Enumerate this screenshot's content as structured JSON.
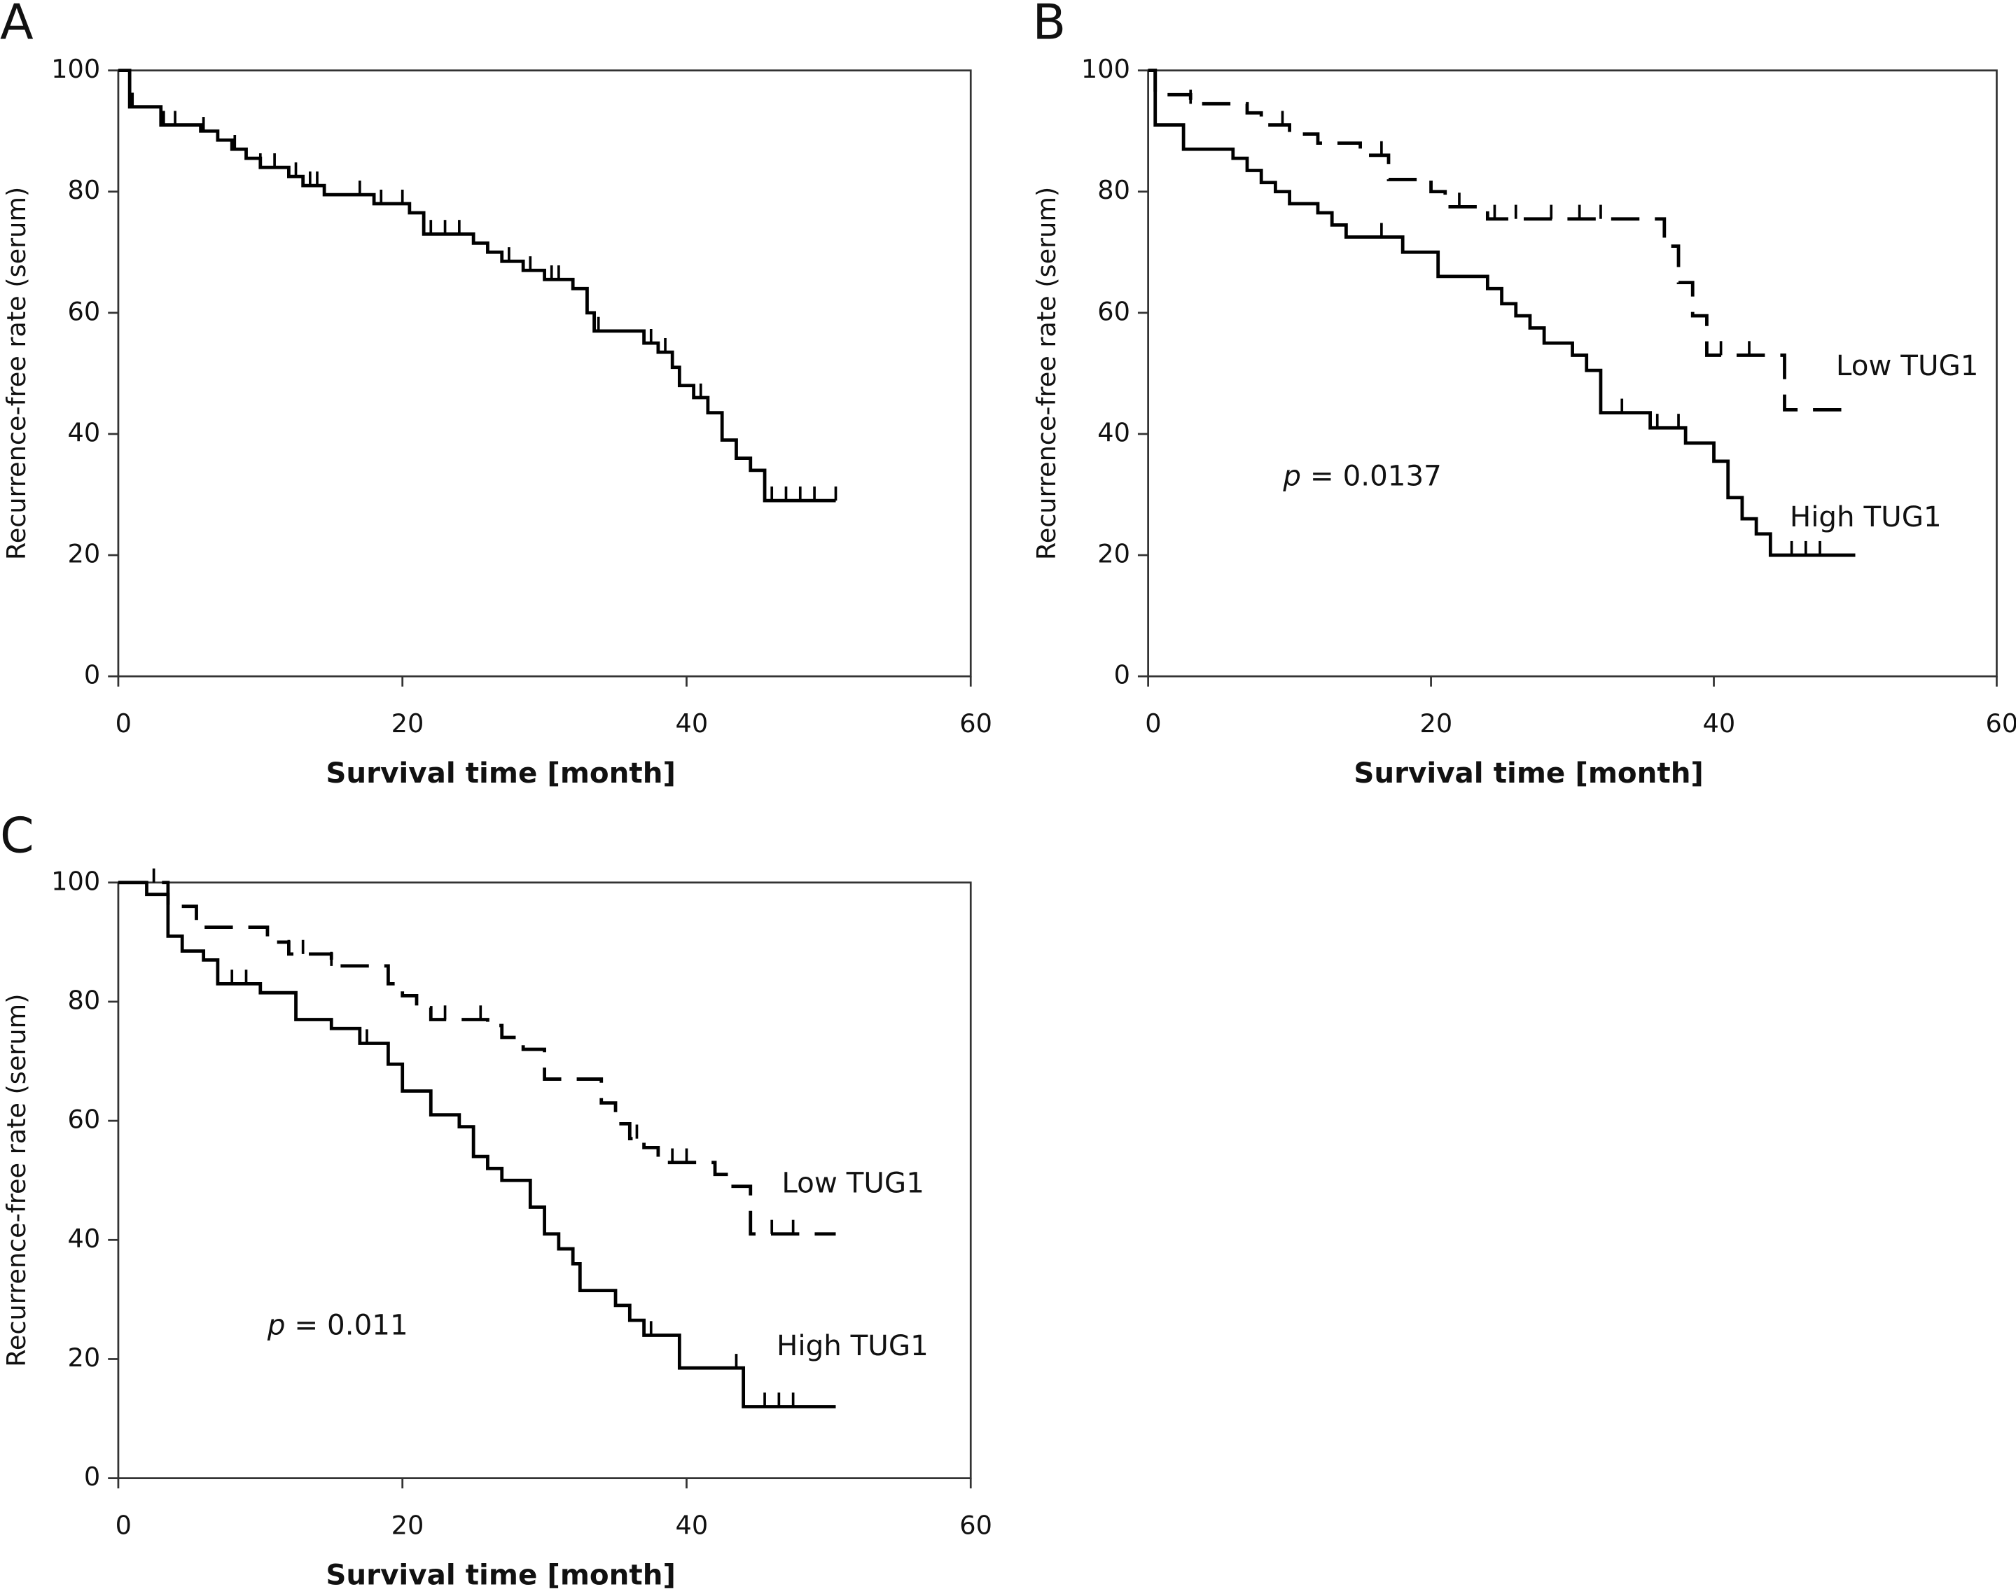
{
  "chart_data": [
    {
      "type": "step",
      "panel": "A",
      "xlabel": "Survival time [month]",
      "ylabel": "Recurrence-free rate (serum)",
      "xlim": [
        0,
        60
      ],
      "ylim": [
        0,
        100
      ],
      "xticks": [
        0,
        20,
        40,
        60
      ],
      "yticks": [
        0,
        20,
        40,
        60,
        80,
        100
      ],
      "series": [
        {
          "color": "#000000",
          "style": "solid",
          "x": [
            0,
            0.8,
            3,
            5.8,
            7,
            8,
            9,
            10,
            12,
            13,
            14.5,
            18,
            20.5,
            21.5,
            25,
            26,
            27,
            28.5,
            30,
            32,
            33,
            33.5,
            37,
            38,
            39,
            39.5,
            40.5,
            41.5,
            42.5,
            43.5,
            44.5,
            45.5,
            50.5
          ],
          "values": [
            100,
            94,
            91,
            90,
            88.5,
            87,
            85.5,
            84,
            82.5,
            81,
            79.5,
            78,
            76.5,
            73,
            71.5,
            70,
            68.5,
            67,
            65.5,
            64,
            60,
            57,
            55,
            53.5,
            51,
            48,
            46,
            43.5,
            39,
            36,
            34,
            29,
            29
          ],
          "censored": [
            1,
            3.2,
            4,
            6,
            8.2,
            10,
            11,
            12.5,
            13.5,
            14,
            17,
            18.5,
            20,
            22,
            23,
            24,
            27.5,
            29,
            30.5,
            31,
            33.8,
            37.5,
            38.5,
            41,
            46,
            47,
            48,
            49,
            50.5
          ]
        }
      ]
    },
    {
      "type": "step",
      "panel": "B",
      "xlabel": "Survival time [month]",
      "ylabel": "Recurrence-free rate (serum)",
      "xlim": [
        0,
        60
      ],
      "ylim": [
        0,
        100
      ],
      "xticks": [
        0,
        20,
        40,
        60
      ],
      "yticks": [
        0,
        20,
        40,
        60,
        80,
        100
      ],
      "p_text": "p = 0.0137",
      "series": [
        {
          "name": "Low TUG1",
          "color": "#000000",
          "style": "dashed",
          "x": [
            0,
            0.5,
            3,
            7,
            8,
            10,
            12,
            15,
            17,
            20,
            21,
            24,
            36.5,
            37.5,
            38.5,
            39.5,
            45,
            50
          ],
          "values": [
            100,
            96,
            94.5,
            93,
            91,
            89.5,
            88,
            86,
            82,
            80,
            77.5,
            75.5,
            71,
            65,
            59.5,
            53,
            44,
            44
          ],
          "censored": [
            3,
            9.5,
            16.5,
            22,
            24.5,
            26,
            28.5,
            30.5,
            32,
            40.5,
            42.5
          ]
        },
        {
          "name": "High TUG1",
          "color": "#000000",
          "style": "solid",
          "x": [
            0,
            0.5,
            2.5,
            6,
            7,
            8,
            9,
            10,
            12,
            13,
            14,
            18,
            20.5,
            24,
            25,
            26,
            27,
            28,
            30,
            31,
            32,
            35.5,
            38,
            40,
            41,
            42,
            43,
            44,
            50
          ],
          "values": [
            100,
            91,
            87,
            85.5,
            83.5,
            81.5,
            80,
            78,
            76.5,
            74.5,
            72.5,
            70,
            66,
            64,
            61.5,
            59.5,
            57.5,
            55,
            53,
            50.5,
            43.5,
            41,
            38.5,
            35.5,
            29.5,
            26,
            23.5,
            20,
            20
          ],
          "censored": [
            16.5,
            33.5,
            36,
            37.5,
            45.5,
            46.5,
            47.5
          ]
        }
      ]
    },
    {
      "type": "step",
      "panel": "C",
      "xlabel": "Survival time [month]",
      "ylabel": "Recurrence-free rate (serum)",
      "xlim": [
        0,
        60
      ],
      "ylim": [
        0,
        100
      ],
      "xticks": [
        0,
        20,
        40,
        60
      ],
      "yticks": [
        0,
        20,
        40,
        60,
        80,
        100
      ],
      "p_text": "p = 0.011",
      "series": [
        {
          "name": "Low TUG1",
          "color": "#000000",
          "style": "dashed",
          "x": [
            0,
            3.5,
            5.5,
            10.5,
            12,
            15,
            19,
            20,
            21,
            22,
            25,
            26,
            27,
            28.5,
            30,
            34,
            35,
            36,
            37,
            38,
            42,
            43,
            44.5,
            50.5
          ],
          "values": [
            100,
            96,
            92.5,
            90,
            88,
            86,
            83,
            81,
            79,
            77,
            77,
            76,
            74,
            72,
            67,
            63,
            59.5,
            57,
            55.5,
            53,
            51,
            49,
            41,
            41
          ],
          "censored": [
            2.5,
            12,
            13,
            15,
            19,
            23,
            25.5,
            36.5,
            39,
            40,
            46,
            47.5
          ]
        },
        {
          "name": "High TUG1",
          "color": "#000000",
          "style": "solid",
          "x": [
            0,
            2,
            3.5,
            4.5,
            6,
            7,
            10,
            12.5,
            15,
            17,
            19,
            20,
            22,
            24,
            25,
            26,
            27,
            29,
            30,
            31,
            32,
            32.5,
            35,
            36,
            37,
            39.5,
            44,
            50.5
          ],
          "values": [
            100,
            98,
            91,
            88.5,
            87,
            83,
            81.5,
            77,
            75.5,
            73,
            69.5,
            65,
            61,
            59,
            54,
            52,
            50,
            45.5,
            41,
            38.5,
            36,
            31.5,
            29,
            26.5,
            24,
            18.5,
            12,
            12
          ],
          "censored": [
            8,
            9,
            17.5,
            37.5,
            43.5,
            45.5,
            46.5,
            47.5
          ]
        }
      ]
    }
  ]
}
